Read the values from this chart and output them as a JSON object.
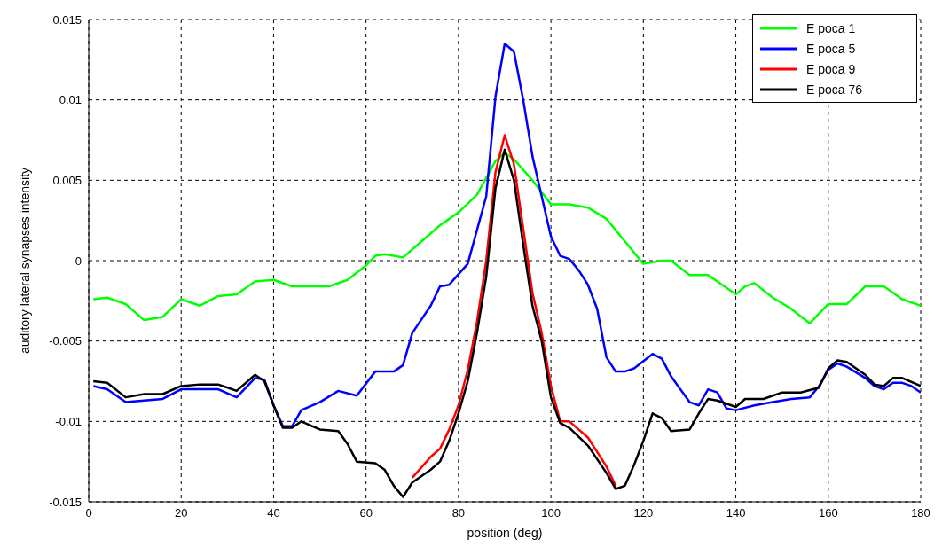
{
  "chart_data": {
    "type": "line",
    "xlabel": "position (deg)",
    "ylabel": "auditory lateral synapses intensity",
    "xlim": [
      0,
      180
    ],
    "xticks": [
      0,
      20,
      40,
      60,
      80,
      100,
      120,
      140,
      160,
      180
    ],
    "ylim": [
      -0.015,
      0.015
    ],
    "yticks": [
      -0.015,
      -0.01,
      -0.005,
      0,
      0.005,
      0.01,
      0.015
    ],
    "grid": true,
    "legend": "top right",
    "line_style": "solid",
    "marker": "none",
    "series": [
      {
        "name": "E poca 1",
        "color": "#00ff00",
        "x": [
          1,
          4,
          8,
          12,
          16,
          20,
          24,
          28,
          32,
          36,
          40,
          44,
          48,
          52,
          56,
          60,
          62,
          64,
          68,
          72,
          76,
          80,
          84,
          88,
          90,
          92,
          96,
          100,
          104,
          108,
          112,
          116,
          120,
          124,
          126,
          130,
          134,
          138,
          140,
          142,
          144,
          148,
          152,
          156,
          160,
          164,
          168,
          172,
          176,
          180
        ],
        "values": [
          -0.0024,
          -0.0023,
          -0.0027,
          -0.0037,
          -0.0035,
          -0.0024,
          -0.0028,
          -0.0022,
          -0.0021,
          -0.0013,
          -0.0012,
          -0.0016,
          -0.0016,
          -0.0016,
          -0.0012,
          -0.0003,
          0.0003,
          0.0004,
          0.0002,
          0.0012,
          0.0022,
          0.003,
          0.0041,
          0.0062,
          0.0067,
          0.0063,
          0.005,
          0.0035,
          0.0035,
          0.0033,
          0.0026,
          0.0012,
          -0.0002,
          0,
          0,
          -0.0009,
          -0.0009,
          -0.0017,
          -0.0021,
          -0.0016,
          -0.0014,
          -0.0023,
          -0.003,
          -0.0039,
          -0.0027,
          -0.0027,
          -0.0016,
          -0.0016,
          -0.0024,
          -0.0028
        ]
      },
      {
        "name": "E poca 5",
        "color": "#0000ff",
        "x": [
          1,
          4,
          8,
          12,
          16,
          20,
          24,
          28,
          32,
          36,
          38,
          40,
          42,
          44,
          46,
          50,
          54,
          58,
          62,
          66,
          68,
          70,
          74,
          76,
          78,
          82,
          86,
          88,
          90,
          92,
          94,
          96,
          98,
          100,
          102,
          104,
          106,
          108,
          110,
          112,
          114,
          116,
          118,
          122,
          124,
          126,
          130,
          132,
          134,
          136,
          138,
          140,
          144,
          148,
          152,
          156,
          158,
          160,
          162,
          164,
          168,
          170,
          172,
          174,
          176,
          178,
          180
        ],
        "values": [
          -0.0078,
          -0.008,
          -0.0088,
          -0.0087,
          -0.0086,
          -0.008,
          -0.008,
          -0.008,
          -0.0085,
          -0.0073,
          -0.0074,
          -0.009,
          -0.0103,
          -0.0103,
          -0.0093,
          -0.0088,
          -0.0081,
          -0.0084,
          -0.0069,
          -0.0069,
          -0.0065,
          -0.0045,
          -0.0028,
          -0.0016,
          -0.0015,
          -0.0002,
          0.004,
          0.0102,
          0.0135,
          0.013,
          0.01,
          0.0065,
          0.004,
          0.0015,
          0.0003,
          0.0001,
          -0.0006,
          -0.0015,
          -0.003,
          -0.006,
          -0.0069,
          -0.0069,
          -0.0067,
          -0.0058,
          -0.0061,
          -0.0072,
          -0.0088,
          -0.009,
          -0.008,
          -0.0082,
          -0.0092,
          -0.0093,
          -0.009,
          -0.0088,
          -0.0086,
          -0.0085,
          -0.0078,
          -0.0068,
          -0.0064,
          -0.0066,
          -0.0073,
          -0.0078,
          -0.008,
          -0.0076,
          -0.0076,
          -0.0078,
          -0.0082
        ]
      },
      {
        "name": "E poca 9",
        "color": "#ff0000",
        "x": [
          70,
          74,
          76,
          78,
          80,
          82,
          84,
          86,
          88,
          90,
          92,
          94,
          96,
          98,
          100,
          102,
          104,
          108,
          112,
          114
        ],
        "values": [
          -0.0135,
          -0.0122,
          -0.0117,
          -0.0105,
          -0.009,
          -0.0068,
          -0.0038,
          0,
          0.0055,
          0.0078,
          0.006,
          0.002,
          -0.002,
          -0.0045,
          -0.0078,
          -0.01,
          -0.01,
          -0.011,
          -0.0128,
          -0.014
        ]
      },
      {
        "name": "E poca 76",
        "color": "#000000",
        "x": [
          1,
          4,
          8,
          12,
          16,
          20,
          24,
          28,
          32,
          36,
          38,
          40,
          42,
          44,
          46,
          50,
          54,
          56,
          58,
          62,
          64,
          66,
          68,
          70,
          74,
          76,
          78,
          80,
          82,
          84,
          86,
          88,
          90,
          92,
          94,
          96,
          98,
          100,
          102,
          104,
          108,
          112,
          114,
          116,
          118,
          120,
          122,
          124,
          126,
          130,
          132,
          134,
          136,
          140,
          142,
          146,
          150,
          154,
          158,
          160,
          162,
          164,
          168,
          170,
          172,
          174,
          176,
          180
        ],
        "values": [
          -0.0075,
          -0.0076,
          -0.0085,
          -0.0083,
          -0.0083,
          -0.0078,
          -0.0077,
          -0.0077,
          -0.0081,
          -0.0071,
          -0.0075,
          -0.009,
          -0.0104,
          -0.0104,
          -0.01,
          -0.0105,
          -0.0106,
          -0.0114,
          -0.0125,
          -0.0126,
          -0.013,
          -0.014,
          -0.0147,
          -0.0138,
          -0.013,
          -0.0125,
          -0.0112,
          -0.0095,
          -0.0075,
          -0.0045,
          -0.001,
          0.0045,
          0.0069,
          0.005,
          0.001,
          -0.0028,
          -0.005,
          -0.0085,
          -0.0101,
          -0.0104,
          -0.0115,
          -0.0132,
          -0.0142,
          -0.014,
          -0.0127,
          -0.0112,
          -0.0095,
          -0.0098,
          -0.0106,
          -0.0105,
          -0.0095,
          -0.0086,
          -0.0087,
          -0.0091,
          -0.0086,
          -0.0086,
          -0.0082,
          -0.0082,
          -0.0079,
          -0.0067,
          -0.0062,
          -0.0063,
          -0.0071,
          -0.0077,
          -0.0078,
          -0.0073,
          -0.0073,
          -0.0078
        ]
      }
    ]
  }
}
